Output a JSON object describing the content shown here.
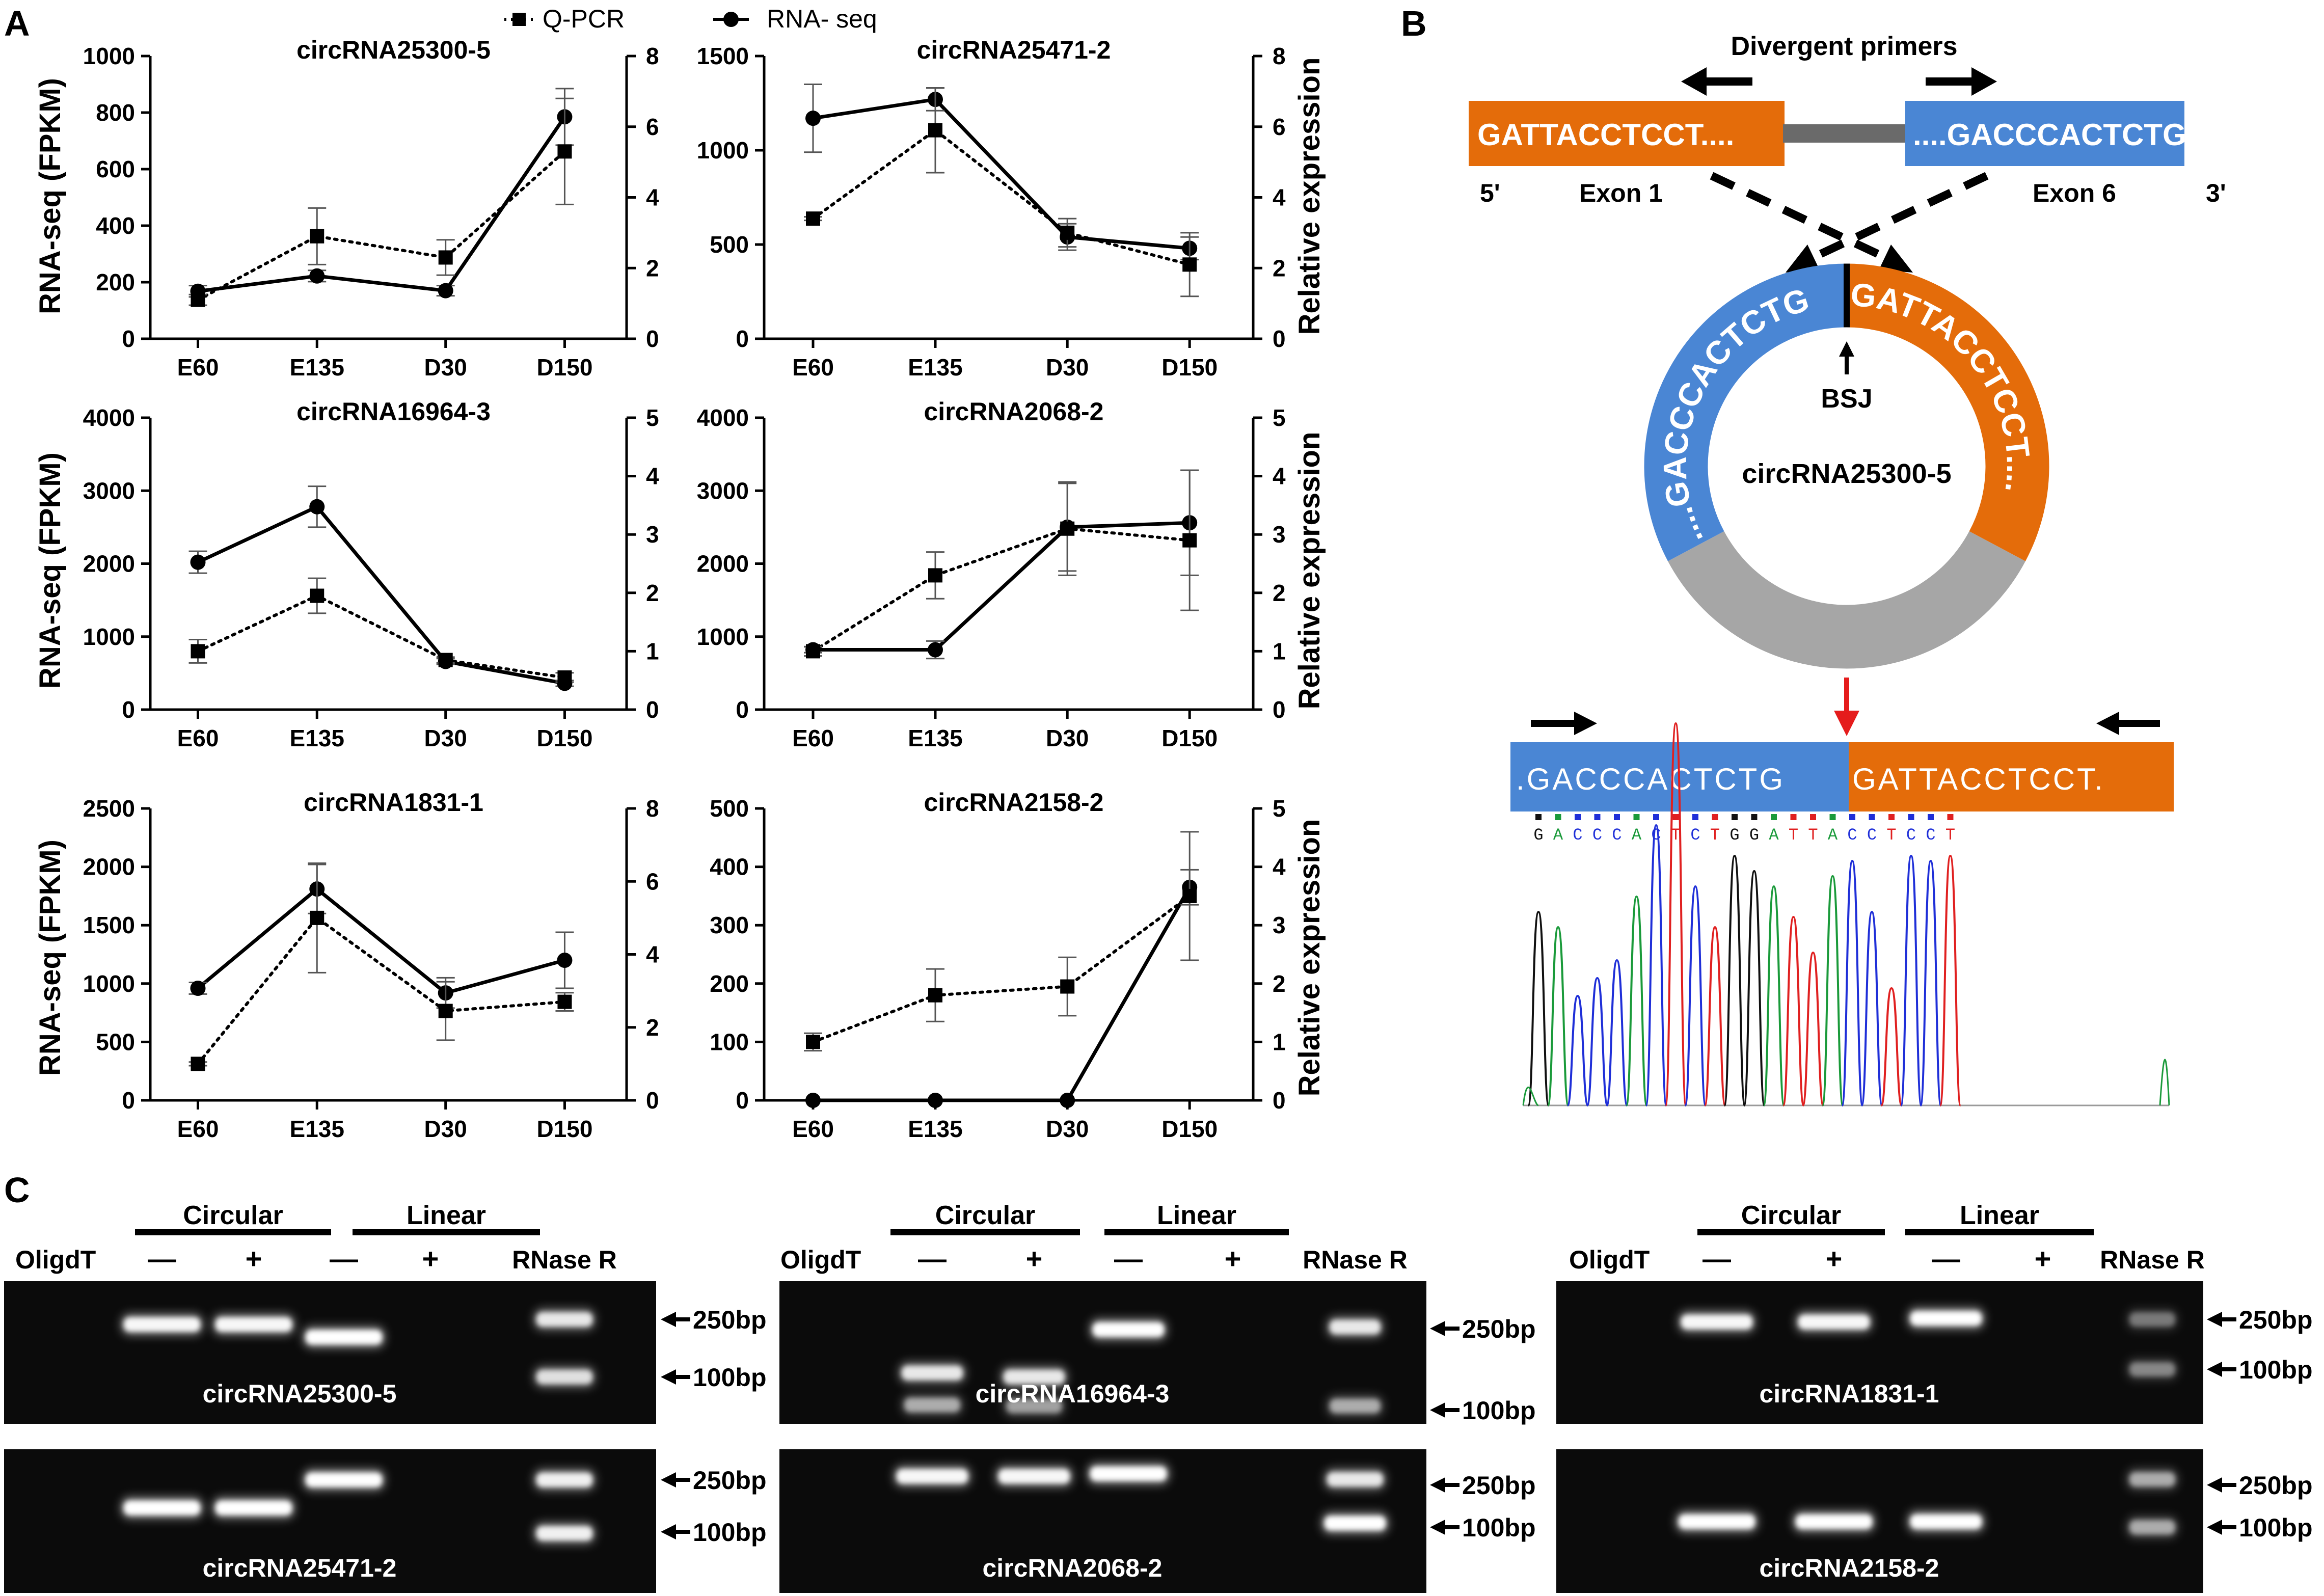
{
  "panel_labels": {
    "a": "A",
    "b": "B",
    "c": "C"
  },
  "legend": {
    "qpcr": "Q-PCR",
    "rnaseq": "RNA- seq"
  },
  "axis_labels": {
    "left": "RNA-seq (FPKM)",
    "right": "Relative expression"
  },
  "chart_data": [
    {
      "type": "line",
      "title": "circRNA25300-5",
      "categories": [
        "E60",
        "E135",
        "D30",
        "D150"
      ],
      "ylabel": "RNA-seq (FPKM)",
      "y2label": "Relative expression",
      "ylim": [
        0,
        1000
      ],
      "yticks": [
        "0",
        "200",
        "400",
        "600",
        "800",
        "1000"
      ],
      "y2lim": [
        0,
        8
      ],
      "y2ticks": [
        "0",
        "2",
        "4",
        "6",
        "8"
      ],
      "series": [
        {
          "name": "RNA- seq",
          "axis": "left",
          "values": [
            168,
            222,
            170,
            785
          ],
          "err": [
            20,
            20,
            18,
            100
          ]
        },
        {
          "name": "Q-PCR",
          "axis": "right",
          "values": [
            1.1,
            2.9,
            2.3,
            5.3
          ],
          "err": [
            0.15,
            0.8,
            0.5,
            1.5
          ]
        }
      ]
    },
    {
      "type": "line",
      "title": "circRNA25471-2",
      "categories": [
        "E60",
        "E135",
        "D30",
        "D150"
      ],
      "ylabel": "RNA-seq (FPKM)",
      "y2label": "Relative expression",
      "ylim": [
        0,
        1500
      ],
      "yticks": [
        "0",
        "500",
        "1000",
        "1500"
      ],
      "y2lim": [
        0,
        8
      ],
      "y2ticks": [
        "0",
        "2",
        "4",
        "6",
        "8"
      ],
      "series": [
        {
          "name": "RNA- seq",
          "axis": "left",
          "values": [
            1170,
            1270,
            540,
            480
          ],
          "err": [
            180,
            60,
            70,
            60
          ]
        },
        {
          "name": "Q-PCR",
          "axis": "right",
          "values": [
            3.4,
            5.9,
            3.0,
            2.1
          ],
          "err": [
            0.05,
            1.2,
            0.4,
            0.9
          ]
        }
      ]
    },
    {
      "type": "line",
      "title": "circRNA16964-3",
      "categories": [
        "E60",
        "E135",
        "D30",
        "D150"
      ],
      "ylabel": "RNA-seq (FPKM)",
      "y2label": "Relative expression",
      "ylim": [
        0,
        4000
      ],
      "yticks": [
        "0",
        "1000",
        "2000",
        "3000",
        "4000"
      ],
      "y2lim": [
        0,
        5
      ],
      "y2ticks": [
        "0",
        "1",
        "2",
        "3",
        "4",
        "5"
      ],
      "series": [
        {
          "name": "RNA- seq",
          "axis": "left",
          "values": [
            2020,
            2780,
            660,
            360
          ],
          "err": [
            150,
            280,
            40,
            40
          ]
        },
        {
          "name": "Q-PCR",
          "axis": "right",
          "values": [
            1.0,
            1.95,
            0.85,
            0.55
          ],
          "err": [
            0.2,
            0.3,
            0.05,
            0.08
          ]
        }
      ]
    },
    {
      "type": "line",
      "title": "circRNA2068-2",
      "categories": [
        "E60",
        "E135",
        "D30",
        "D150"
      ],
      "ylabel": "RNA-seq (FPKM)",
      "y2label": "Relative expression",
      "ylim": [
        0,
        4000
      ],
      "yticks": [
        "0",
        "1000",
        "2000",
        "3000",
        "4000"
      ],
      "y2lim": [
        0,
        5
      ],
      "y2ticks": [
        "0",
        "1",
        "2",
        "3",
        "4",
        "5"
      ],
      "series": [
        {
          "name": "RNA- seq",
          "axis": "left",
          "values": [
            820,
            820,
            2500,
            2560
          ],
          "err": [
            40,
            120,
            600,
            720
          ]
        },
        {
          "name": "Q-PCR",
          "axis": "right",
          "values": [
            1.0,
            2.3,
            3.1,
            2.9
          ],
          "err": [
            0.08,
            0.4,
            0.8,
            1.2
          ]
        }
      ]
    },
    {
      "type": "line",
      "title": "circRNA1831-1",
      "categories": [
        "E60",
        "E135",
        "D30",
        "D150"
      ],
      "ylabel": "RNA-seq (FPKM)",
      "y2label": "Relative expression",
      "ylim": [
        0,
        2500
      ],
      "yticks": [
        "0",
        "500",
        "1000",
        "1500",
        "2000",
        "2500"
      ],
      "y2lim": [
        0,
        8
      ],
      "y2ticks": [
        "0",
        "2",
        "4",
        "6",
        "8"
      ],
      "series": [
        {
          "name": "RNA- seq",
          "axis": "left",
          "values": [
            960,
            1810,
            920,
            1200
          ],
          "err": [
            50,
            210,
            130,
            240
          ]
        },
        {
          "name": "Q-PCR",
          "axis": "right",
          "values": [
            1.0,
            5.0,
            2.45,
            2.7
          ],
          "err": [
            0.05,
            1.5,
            0.8,
            0.25
          ]
        }
      ]
    },
    {
      "type": "line",
      "title": "circRNA2158-2",
      "categories": [
        "E60",
        "E135",
        "D30",
        "D150"
      ],
      "ylabel": "RNA-seq (FPKM)",
      "y2label": "Relative expression",
      "ylim": [
        0,
        500
      ],
      "yticks": [
        "0",
        "100",
        "200",
        "300",
        "400",
        "500"
      ],
      "y2lim": [
        0,
        5
      ],
      "y2ticks": [
        "0",
        "1",
        "2",
        "3",
        "4",
        "5"
      ],
      "series": [
        {
          "name": "RNA- seq",
          "axis": "left",
          "values": [
            0,
            0,
            0,
            365
          ],
          "err": [
            0,
            0,
            0,
            30
          ]
        },
        {
          "name": "Q-PCR",
          "axis": "right",
          "values": [
            1.0,
            1.8,
            1.95,
            3.5
          ],
          "err": [
            0.15,
            0.45,
            0.5,
            1.1
          ]
        }
      ]
    }
  ],
  "panel_b": {
    "divergent_primers": "Divergent primers",
    "exon1_seq": "GATTACCTCCT....",
    "exon6_seq": "....GACCCACTCTG",
    "five_prime": "5'",
    "three_prime": "3'",
    "exon1_label": "Exon 1",
    "exon6_label": "Exon 6",
    "ring_left_seq": "....GACCCACTCTG",
    "ring_right_seq": "GATTACCTCCT....",
    "bsj_label": "BSJ",
    "circ_name": "circRNA25300-5",
    "junction_left": ".GACCCACTCTG",
    "junction_right": "GATTACCTCCT.",
    "bases": [
      "G",
      "A",
      "C",
      "C",
      "C",
      "A",
      "C",
      "T",
      "C",
      "T",
      "G",
      "G",
      "A",
      "T",
      "T",
      "A",
      "C",
      "C",
      "T",
      "C",
      "C",
      "T"
    ],
    "base_colors": {
      "G": "#111111",
      "A": "#1a9a3a",
      "C": "#1f2fd8",
      "T": "#e02020"
    },
    "exon1_color": "#e46c0a",
    "exon6_color": "#4a86d4"
  },
  "panel_c": {
    "circular_label": "Circular",
    "linear_label": "Linear",
    "oligdt_label": "OligdT",
    "minus": "—",
    "plus": "+",
    "rnase_label": "RNase R",
    "marker_250": "250bp",
    "marker_100": "100bp",
    "gels": [
      {
        "name": "circRNA25300-5"
      },
      {
        "name": "circRNA16964-3"
      },
      {
        "name": "circRNA1831-1"
      },
      {
        "name": "circRNA25471-2"
      },
      {
        "name": "circRNA2068-2"
      },
      {
        "name": "circRNA2158-2"
      }
    ]
  }
}
